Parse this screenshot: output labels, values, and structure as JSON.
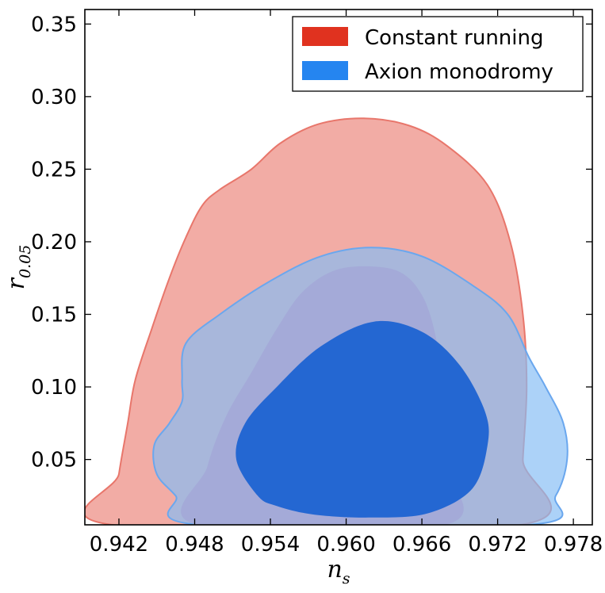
{
  "chart_data": {
    "type": "contour",
    "title": "",
    "xlabel": {
      "main": "n",
      "sub": "s"
    },
    "ylabel": {
      "main": "r",
      "sub": "0.05"
    },
    "xlim": [
      0.9393,
      0.9795
    ],
    "ylim": [
      0.005,
      0.36
    ],
    "xticks": [
      0.942,
      0.948,
      0.954,
      0.96,
      0.966,
      0.972,
      0.978
    ],
    "xtick_labels": [
      "0.942",
      "0.948",
      "0.954",
      "0.960",
      "0.966",
      "0.972",
      "0.978"
    ],
    "yticks": [
      0.05,
      0.1,
      0.15,
      0.2,
      0.25,
      0.3,
      0.35
    ],
    "ytick_labels": [
      "0.05",
      "0.10",
      "0.15",
      "0.20",
      "0.25",
      "0.30",
      "0.35"
    ],
    "legend_position": "top-right",
    "series": [
      {
        "name": "Constant running",
        "color": "#e0321f",
        "contours": [
          {
            "level": "95%",
            "fill": "#f2aca5",
            "stroke": "#e8766b",
            "points": [
              [
                0.9415,
                0.005
              ],
              [
                0.942,
                0.04
              ],
              [
                0.9427,
                0.075
              ],
              [
                0.9433,
                0.105
              ],
              [
                0.9446,
                0.14
              ],
              [
                0.946,
                0.175
              ],
              [
                0.9473,
                0.203
              ],
              [
                0.9486,
                0.225
              ],
              [
                0.95,
                0.236
              ],
              [
                0.9525,
                0.25
              ],
              [
                0.9548,
                0.268
              ],
              [
                0.9578,
                0.281
              ],
              [
                0.9614,
                0.285
              ],
              [
                0.965,
                0.28
              ],
              [
                0.968,
                0.266
              ],
              [
                0.9712,
                0.239
              ],
              [
                0.973,
                0.2
              ],
              [
                0.974,
                0.15
              ],
              [
                0.9743,
                0.1
              ],
              [
                0.974,
                0.05
              ],
              [
                0.9738,
                0.005
              ]
            ]
          },
          {
            "level": "68%",
            "fill": "#a4aad8",
            "stroke": "none",
            "points": [
              [
                0.9482,
                0.005
              ],
              [
                0.949,
                0.045
              ],
              [
                0.9505,
                0.08
              ],
              [
                0.9525,
                0.11
              ],
              [
                0.9545,
                0.14
              ],
              [
                0.9565,
                0.165
              ],
              [
                0.959,
                0.18
              ],
              [
                0.962,
                0.183
              ],
              [
                0.9645,
                0.178
              ],
              [
                0.9662,
                0.16
              ],
              [
                0.9672,
                0.13
              ],
              [
                0.9675,
                0.1
              ],
              [
                0.9677,
                0.05
              ],
              [
                0.9679,
                0.005
              ]
            ]
          }
        ]
      },
      {
        "name": "Axion monodromy",
        "color": "#2585f0",
        "contours": [
          {
            "level": "95%",
            "fill": "rgba(133,188,245,0.68)",
            "stroke": "#6aa7ee",
            "points": [
              [
                0.9484,
                0.005
              ],
              [
                0.9465,
                0.025
              ],
              [
                0.945,
                0.04
              ],
              [
                0.9448,
                0.06
              ],
              [
                0.946,
                0.075
              ],
              [
                0.947,
                0.09
              ],
              [
                0.947,
                0.105
              ],
              [
                0.9473,
                0.13
              ],
              [
                0.95,
                0.15
              ],
              [
                0.954,
                0.173
              ],
              [
                0.958,
                0.19
              ],
              [
                0.962,
                0.196
              ],
              [
                0.966,
                0.19
              ],
              [
                0.97,
                0.17
              ],
              [
                0.9728,
                0.15
              ],
              [
                0.9745,
                0.12
              ],
              [
                0.9758,
                0.1
              ],
              [
                0.9772,
                0.075
              ],
              [
                0.9775,
                0.05
              ],
              [
                0.9766,
                0.025
              ],
              [
                0.9745,
                0.005
              ]
            ]
          },
          {
            "level": "68%",
            "fill": "#2467d2",
            "stroke": "none",
            "points": [
              [
                0.953,
                0.025
              ],
              [
                0.9513,
                0.05
              ],
              [
                0.952,
                0.075
              ],
              [
                0.9545,
                0.1
              ],
              [
                0.958,
                0.128
              ],
              [
                0.9622,
                0.145
              ],
              [
                0.966,
                0.138
              ],
              [
                0.969,
                0.115
              ],
              [
                0.971,
                0.083
              ],
              [
                0.9712,
                0.06
              ],
              [
                0.97,
                0.03
              ],
              [
                0.9665,
                0.013
              ],
              [
                0.962,
                0.01
              ],
              [
                0.9575,
                0.012
              ],
              [
                0.9545,
                0.018
              ]
            ]
          }
        ]
      }
    ]
  }
}
